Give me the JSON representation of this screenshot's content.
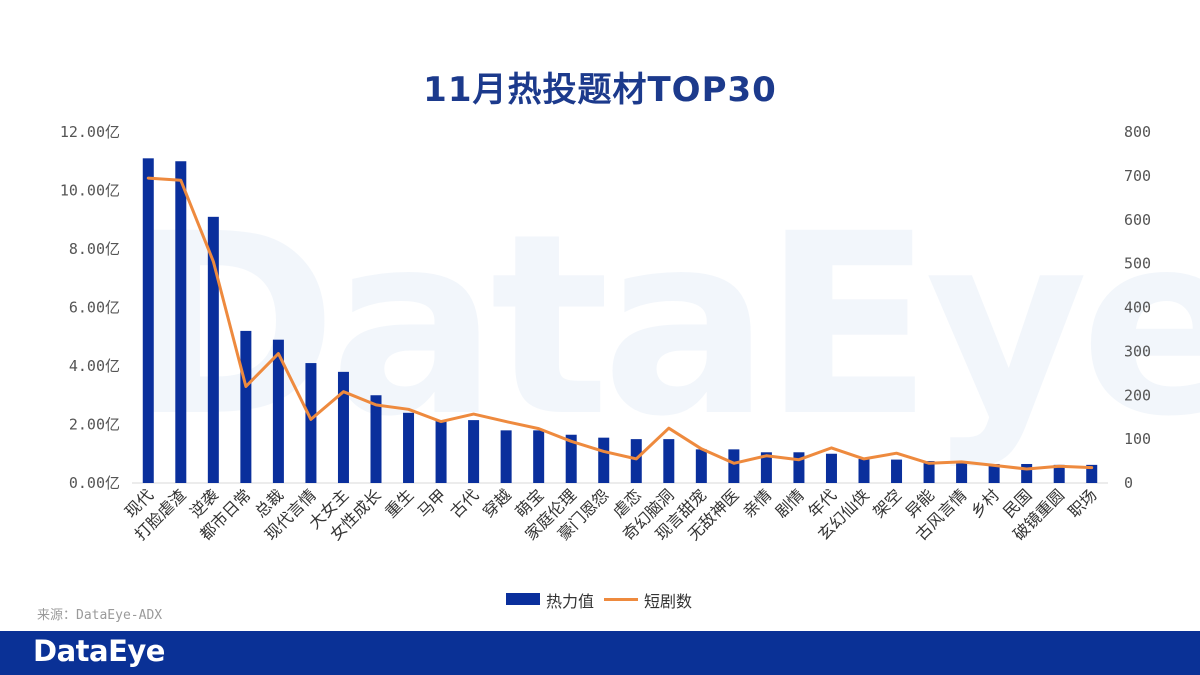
{
  "title": "11月热投题材TOP30",
  "source": "来源：DataEye-ADX",
  "brand": "DataEye",
  "watermark": "DataEye",
  "colors": {
    "bar": "#0a2f9c",
    "line": "#ee8a3e",
    "title": "#1c3a8c",
    "footer": "#0a3196"
  },
  "chart_data": {
    "type": "bar",
    "title": "11月热投题材TOP30",
    "categories": [
      "现代",
      "打脸虐渣",
      "逆袭",
      "都市日常",
      "总裁",
      "现代言情",
      "大女主",
      "女性成长",
      "重生",
      "马甲",
      "古代",
      "穿越",
      "萌宝",
      "家庭伦理",
      "豪门恩怨",
      "虐恋",
      "奇幻脑洞",
      "现言甜宠",
      "无敌神医",
      "亲情",
      "剧情",
      "年代",
      "玄幻仙侠",
      "架空",
      "异能",
      "古风言情",
      "乡村",
      "民国",
      "破镜重圆",
      "职场"
    ],
    "series": [
      {
        "name": "热力值",
        "type": "bar",
        "axis": "left",
        "values": [
          11.1,
          11.0,
          9.1,
          5.2,
          4.9,
          4.1,
          3.8,
          3.0,
          2.4,
          2.15,
          2.15,
          1.8,
          1.8,
          1.65,
          1.55,
          1.5,
          1.5,
          1.15,
          1.15,
          1.05,
          1.05,
          1.0,
          0.82,
          0.8,
          0.75,
          0.7,
          0.65,
          0.65,
          0.62,
          0.62
        ]
      },
      {
        "name": "短剧数",
        "type": "line",
        "axis": "right",
        "values": [
          695,
          690,
          505,
          220,
          295,
          145,
          208,
          178,
          168,
          140,
          157,
          140,
          124,
          95,
          72,
          55,
          125,
          78,
          45,
          62,
          53,
          80,
          55,
          68,
          45,
          48,
          40,
          32,
          38,
          35
        ]
      }
    ],
    "y_left": {
      "min": 0,
      "max": 12,
      "ticks": [
        "0.00亿",
        "2.00亿",
        "4.00亿",
        "6.00亿",
        "8.00亿",
        "10.00亿",
        "12.00亿"
      ]
    },
    "y_right": {
      "min": 0,
      "max": 800,
      "ticks": [
        "0",
        "100",
        "200",
        "300",
        "400",
        "500",
        "600",
        "700",
        "800"
      ]
    },
    "legend_position": "bottom-center",
    "grid": false
  }
}
